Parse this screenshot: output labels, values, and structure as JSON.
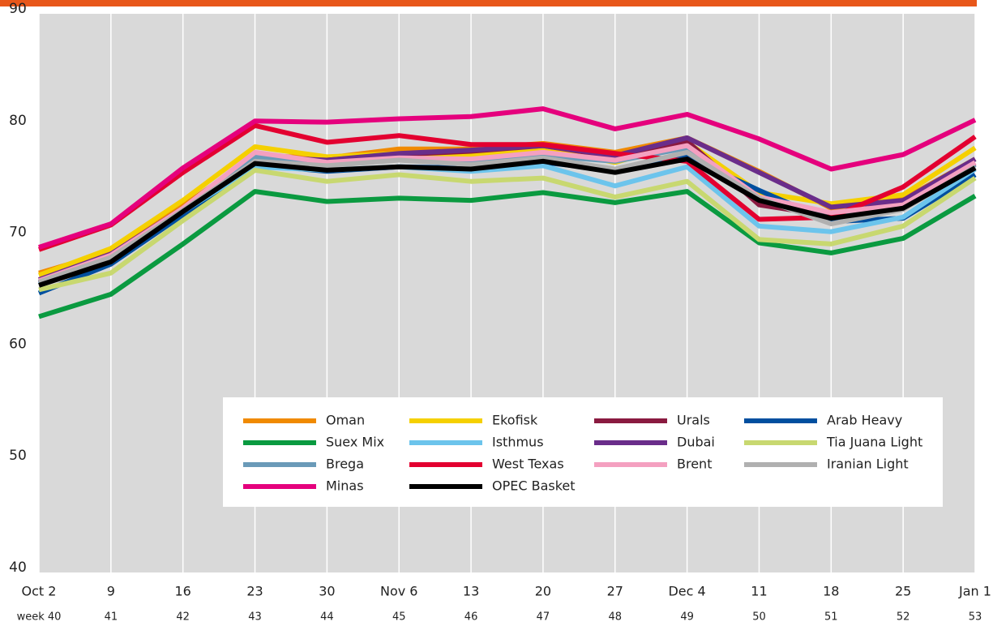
{
  "chart_data": {
    "type": "line",
    "categories": [
      "Oct 2",
      "9",
      "16",
      "23",
      "30",
      "Nov 6",
      "13",
      "20",
      "27",
      "Dec 4",
      "11",
      "18",
      "25",
      "Jan 1"
    ],
    "weeks": [
      "week 40",
      "41",
      "42",
      "43",
      "44",
      "45",
      "46",
      "47",
      "48",
      "49",
      "50",
      "51",
      "52",
      "53"
    ],
    "ylim": [
      40,
      90
    ],
    "yticks": [
      40,
      50,
      60,
      70,
      80,
      90
    ],
    "grid": true,
    "series": [
      {
        "name": "Oman",
        "color": "#f08a00",
        "values": [
          66.8,
          68.7,
          72.8,
          77.3,
          77.1,
          77.9,
          77.9,
          78.4,
          77.6,
          78.9,
          75.9,
          72.6,
          73.4,
          77.0
        ]
      },
      {
        "name": "Ekofisk",
        "color": "#f5d000",
        "values": [
          66.6,
          69.0,
          73.3,
          78.1,
          77.2,
          77.5,
          77.4,
          78.0,
          76.7,
          78.5,
          74.0,
          73.0,
          73.8,
          78.0
        ]
      },
      {
        "name": "Urals",
        "color": "#8a1a40",
        "values": [
          65.9,
          68.3,
          72.5,
          77.0,
          76.9,
          77.4,
          77.7,
          78.2,
          77.2,
          78.6,
          72.9,
          71.9,
          73.2,
          76.6
        ]
      },
      {
        "name": "Arab Heavy",
        "color": "#004f9f",
        "values": [
          65.0,
          67.6,
          72.0,
          76.5,
          75.9,
          76.3,
          76.2,
          76.7,
          76.0,
          77.2,
          74.2,
          71.4,
          71.7,
          75.6
        ]
      },
      {
        "name": "Suex Mix",
        "color": "#0a9a40",
        "values": [
          62.9,
          64.9,
          69.4,
          74.1,
          73.2,
          73.5,
          73.3,
          74.0,
          73.1,
          74.1,
          69.5,
          68.6,
          69.9,
          73.7
        ]
      },
      {
        "name": "Isthmus",
        "color": "#6cc4ec",
        "values": [
          65.8,
          68.0,
          72.3,
          76.3,
          76.0,
          76.3,
          75.9,
          76.4,
          74.6,
          76.3,
          71.0,
          70.5,
          71.8,
          76.1
        ]
      },
      {
        "name": "Dubai",
        "color": "#6a2d8a",
        "values": [
          66.2,
          68.5,
          72.6,
          77.2,
          76.9,
          77.5,
          77.8,
          78.2,
          77.3,
          78.9,
          75.8,
          72.7,
          73.3,
          77.0
        ]
      },
      {
        "name": "Tia Juana Light",
        "color": "#c8d870",
        "values": [
          65.3,
          66.8,
          71.5,
          76.0,
          75.0,
          75.6,
          75.0,
          75.3,
          73.6,
          75.0,
          69.8,
          69.4,
          71.0,
          75.3
        ]
      },
      {
        "name": "Brega",
        "color": "#6a9ab8",
        "values": [
          66.0,
          68.3,
          72.5,
          77.2,
          76.5,
          77.0,
          76.9,
          77.3,
          76.8,
          78.0,
          73.5,
          71.7,
          72.8,
          76.5
        ]
      },
      {
        "name": "West Texas",
        "color": "#e30030",
        "values": [
          68.9,
          71.1,
          75.8,
          80.0,
          78.5,
          79.1,
          78.3,
          78.3,
          77.5,
          76.8,
          71.6,
          71.8,
          74.5,
          79.0
        ]
      },
      {
        "name": "Brent",
        "color": "#f4a0c0",
        "values": [
          66.1,
          68.4,
          72.6,
          77.6,
          76.7,
          77.1,
          77.0,
          77.6,
          76.9,
          78.2,
          73.6,
          72.2,
          72.9,
          76.7
        ]
      },
      {
        "name": "Iranian Light",
        "color": "#b0b0b0",
        "values": [
          66.0,
          68.2,
          72.4,
          76.8,
          76.4,
          76.9,
          76.5,
          77.1,
          76.1,
          77.6,
          73.5,
          71.2,
          72.5,
          76.3
        ]
      },
      {
        "name": "Minas",
        "color": "#e5007d",
        "values": [
          69.1,
          71.2,
          76.2,
          80.4,
          80.3,
          80.6,
          80.8,
          81.5,
          79.7,
          81.0,
          78.8,
          76.1,
          77.4,
          80.5
        ]
      },
      {
        "name": "OPEC Basket",
        "color": "#000000",
        "values": [
          65.7,
          67.8,
          72.3,
          76.6,
          76.0,
          76.3,
          76.1,
          76.8,
          75.8,
          77.0,
          73.3,
          71.7,
          72.6,
          76.2
        ]
      }
    ]
  }
}
